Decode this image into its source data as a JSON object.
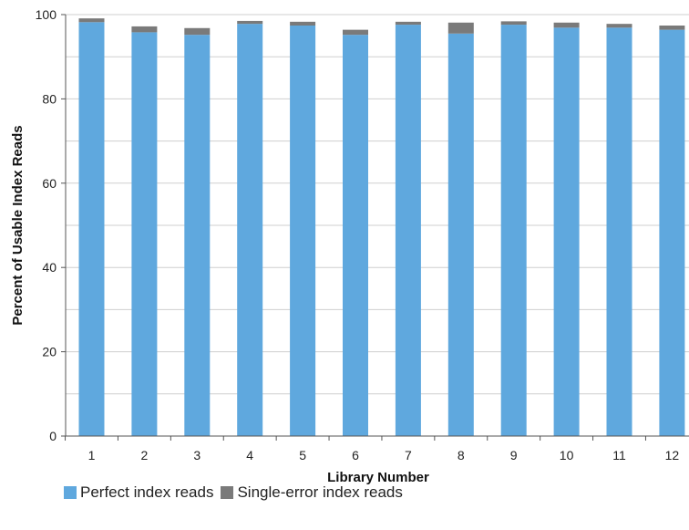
{
  "chart_data": {
    "type": "bar",
    "stacked": true,
    "title": "",
    "xlabel": "Library Number",
    "ylabel": "Percent of Usable Index Reads",
    "categories": [
      "1",
      "2",
      "3",
      "4",
      "5",
      "6",
      "7",
      "8",
      "9",
      "10",
      "11",
      "12"
    ],
    "series": [
      {
        "name": "Perfect index reads",
        "color": "#5fa8de",
        "values": [
          98.2,
          95.8,
          95.2,
          97.8,
          97.4,
          95.2,
          97.6,
          95.5,
          97.6,
          96.9,
          96.9,
          96.4
        ]
      },
      {
        "name": "Single-error index reads",
        "color": "#7a7a7a",
        "values": [
          0.9,
          1.4,
          1.6,
          0.7,
          0.9,
          1.2,
          0.7,
          2.6,
          0.8,
          1.2,
          0.9,
          1.0
        ]
      }
    ],
    "ylim": [
      0,
      100
    ],
    "yticks": [
      0,
      20,
      40,
      60,
      80,
      100
    ],
    "grid": true,
    "legend_position": "bottom"
  }
}
